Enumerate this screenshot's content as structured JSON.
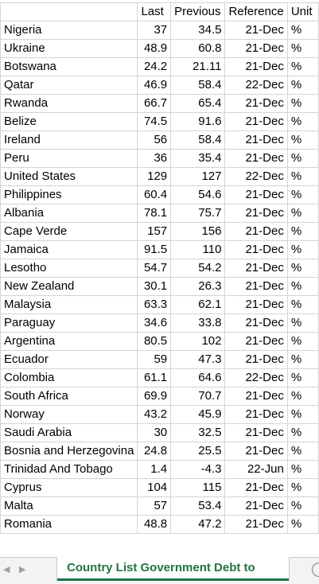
{
  "headers": [
    "",
    "Last",
    "Previous",
    "Reference",
    "Unit"
  ],
  "rows": [
    [
      "Nigeria",
      "37",
      "34.5",
      "21-Dec",
      "%"
    ],
    [
      "Ukraine",
      "48.9",
      "60.8",
      "21-Dec",
      "%"
    ],
    [
      "Botswana",
      "24.2",
      "21.11",
      "21-Dec",
      "%"
    ],
    [
      "Qatar",
      "46.9",
      "58.4",
      "22-Dec",
      "%"
    ],
    [
      "Rwanda",
      "66.7",
      "65.4",
      "21-Dec",
      "%"
    ],
    [
      "Belize",
      "74.5",
      "91.6",
      "21-Dec",
      "%"
    ],
    [
      "Ireland",
      "56",
      "58.4",
      "21-Dec",
      "%"
    ],
    [
      "Peru",
      "36",
      "35.4",
      "21-Dec",
      "%"
    ],
    [
      "United States",
      "129",
      "127",
      "22-Dec",
      "%"
    ],
    [
      "Philippines",
      "60.4",
      "54.6",
      "21-Dec",
      "%"
    ],
    [
      "Albania",
      "78.1",
      "75.7",
      "21-Dec",
      "%"
    ],
    [
      "Cape Verde",
      "157",
      "156",
      "21-Dec",
      "%"
    ],
    [
      "Jamaica",
      "91.5",
      "110",
      "21-Dec",
      "%"
    ],
    [
      "Lesotho",
      "54.7",
      "54.2",
      "21-Dec",
      "%"
    ],
    [
      "New Zealand",
      "30.1",
      "26.3",
      "21-Dec",
      "%"
    ],
    [
      "Malaysia",
      "63.3",
      "62.1",
      "21-Dec",
      "%"
    ],
    [
      "Paraguay",
      "34.6",
      "33.8",
      "21-Dec",
      "%"
    ],
    [
      "Argentina",
      "80.5",
      "102",
      "21-Dec",
      "%"
    ],
    [
      "Ecuador",
      "59",
      "47.3",
      "21-Dec",
      "%"
    ],
    [
      "Colombia",
      "61.1",
      "64.6",
      "22-Dec",
      "%"
    ],
    [
      "South Africa",
      "69.9",
      "70.7",
      "21-Dec",
      "%"
    ],
    [
      "Norway",
      "43.2",
      "45.9",
      "21-Dec",
      "%"
    ],
    [
      "Saudi Arabia",
      "30",
      "32.5",
      "21-Dec",
      "%"
    ],
    [
      "Bosnia and Herzegovina",
      "24.8",
      "25.5",
      "21-Dec",
      "%"
    ],
    [
      "Trinidad And Tobago",
      "1.4",
      "-4.3",
      "22-Jun",
      "%"
    ],
    [
      "Cyprus",
      "104",
      "115",
      "21-Dec",
      "%"
    ],
    [
      "Malta",
      "57",
      "53.4",
      "21-Dec",
      "%"
    ],
    [
      "Romania",
      "48.8",
      "47.2",
      "21-Dec",
      "%"
    ]
  ],
  "sheet_tab": {
    "label": "Country List Government Debt to"
  },
  "icons": {
    "scroll_left": "chevron-left-icon",
    "scroll_right": "chevron-right-icon",
    "add_sheet": "plus-circle-icon"
  }
}
